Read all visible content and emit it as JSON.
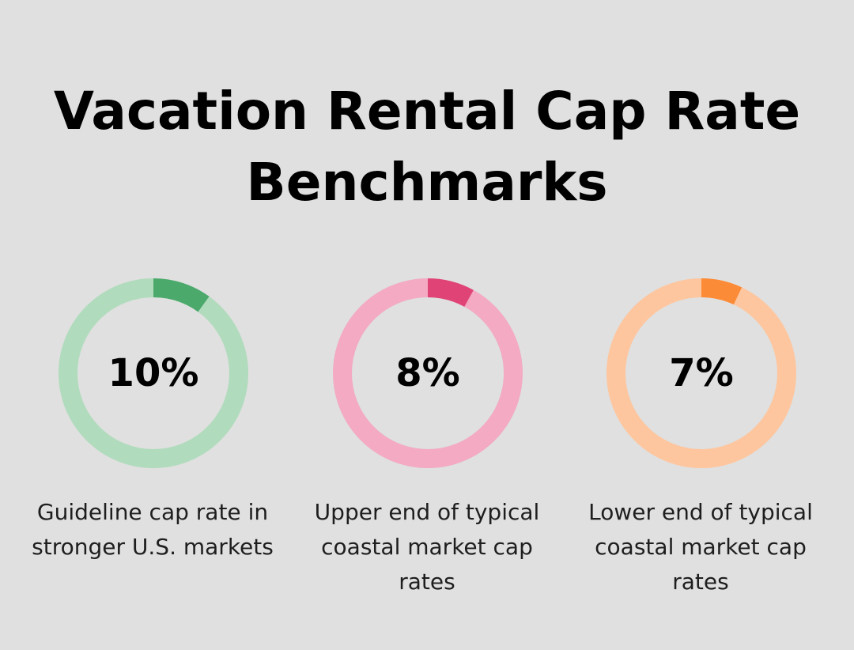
{
  "header": {
    "title_line1": "Vacation Rental Cap Rate",
    "title_line2": "Benchmarks"
  },
  "chart_data": [
    {
      "type": "pie",
      "value": 10,
      "label": "10%",
      "caption": "Guideline cap rate in stronger U.S. markets",
      "colors": {
        "fill": "#4ba96b",
        "track": "#b1dbbd"
      }
    },
    {
      "type": "pie",
      "value": 8,
      "label": "8%",
      "caption": "Upper end of typical coastal market cap rates",
      "colors": {
        "fill": "#e04477",
        "track": "#f3aac2"
      }
    },
    {
      "type": "pie",
      "value": 7,
      "label": "7%",
      "caption": "Lower end of typical coastal market cap rates",
      "colors": {
        "fill": "#fc8b37",
        "track": "#fec69f"
      }
    }
  ]
}
